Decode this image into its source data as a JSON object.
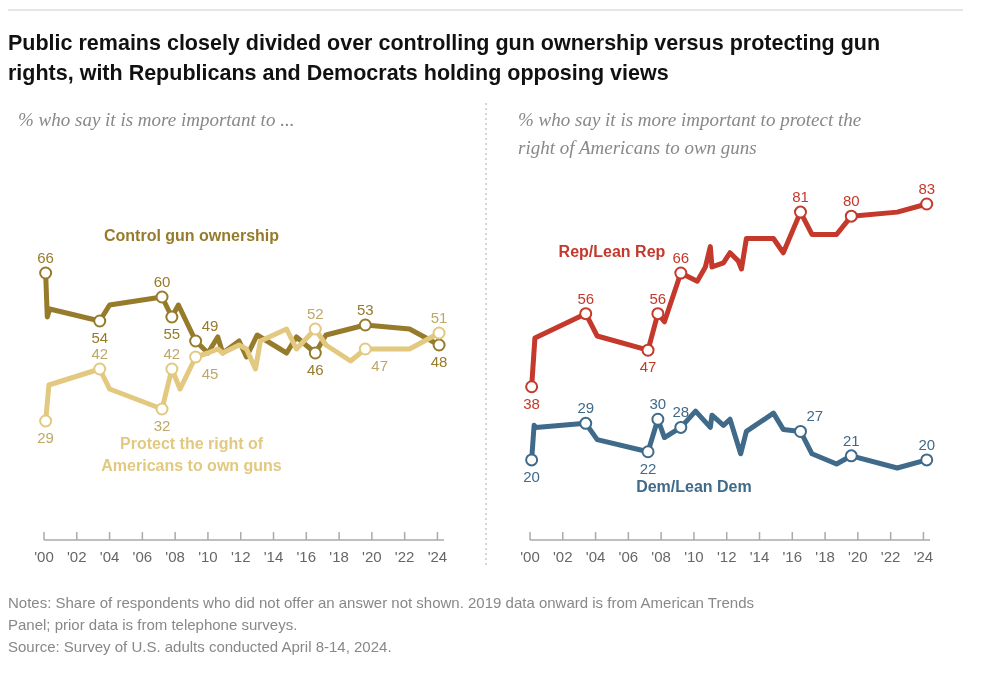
{
  "chart_data": [
    {
      "type": "line",
      "title": "Public remains closely divided over controlling gun ownership versus protecting gun rights, with Republicans and Democrats holding opposing views",
      "subtitle": "% who say it is more important to ...",
      "xlim": [
        2000,
        2024.4
      ],
      "xticks": [
        {
          "value": 2000,
          "label": "'00"
        },
        {
          "value": 2002,
          "label": "'02"
        },
        {
          "value": 2004,
          "label": "'04"
        },
        {
          "value": 2006,
          "label": "'06"
        },
        {
          "value": 2008,
          "label": "'08"
        },
        {
          "value": 2010,
          "label": "'10"
        },
        {
          "value": 2012,
          "label": "'12"
        },
        {
          "value": 2014,
          "label": "'14"
        },
        {
          "value": 2016,
          "label": "'16"
        },
        {
          "value": 2018,
          "label": "'18"
        },
        {
          "value": 2020,
          "label": "'20"
        },
        {
          "value": 2022,
          "label": "'22"
        },
        {
          "value": 2024,
          "label": "'24"
        }
      ],
      "tick_labels": "x",
      "grid": false,
      "legend": false,
      "line_style": "solid",
      "annotations": [
        "Notes: Share of respondents who did not offer an answer not shown. 2019 data onward is from American Trends Panel; prior data is from telephone surveys.",
        "Source: Survey of U.S. adults conducted April 8-14, 2024."
      ],
      "series": [
        {
          "name": "Control gun ownership",
          "color": "#967b2b",
          "x": [
            2000.1,
            2000.2,
            2000.35,
            2003.4,
            2004.0,
            2007.2,
            2007.8,
            2008.2,
            2009.25,
            2010.0,
            2010.6,
            2010.9,
            2011.9,
            2012.35,
            2013.0,
            2014.8,
            2015.4,
            2016.55,
            2017.2,
            2019.6,
            2022.3,
            2024.1
          ],
          "values": [
            66,
            55,
            57,
            54,
            58,
            60,
            55,
            58,
            49,
            46,
            50,
            46,
            49,
            45,
            50.5,
            46,
            50,
            46,
            50.5,
            53,
            52,
            48
          ],
          "value_labels": [
            "66",
            null,
            null,
            "54",
            null,
            "60",
            "55",
            null,
            "49",
            null,
            null,
            null,
            null,
            null,
            null,
            null,
            null,
            "46",
            null,
            "53",
            null,
            "48"
          ]
        },
        {
          "name": "Protect the right of Americans to own guns",
          "color": "#e2c97f",
          "x": [
            2000.1,
            2000.3,
            2003.4,
            2004.0,
            2007.2,
            2007.8,
            2008.3,
            2009.25,
            2010.0,
            2010.6,
            2010.9,
            2011.9,
            2012.35,
            2012.9,
            2013.2,
            2014.8,
            2015.4,
            2016.55,
            2017.2,
            2018.7,
            2019.6,
            2022.3,
            2024.1
          ],
          "values": [
            29,
            38,
            42,
            37,
            32,
            42,
            37,
            45,
            46,
            47,
            46,
            48,
            47,
            42,
            49,
            52,
            47,
            52,
            48,
            44,
            47,
            47,
            51
          ],
          "value_labels": [
            "29",
            null,
            "42",
            null,
            "32",
            "42",
            null,
            "45",
            null,
            null,
            null,
            null,
            null,
            null,
            null,
            null,
            null,
            "52",
            null,
            null,
            "47",
            null,
            "51"
          ]
        }
      ]
    },
    {
      "type": "line",
      "subtitle": "% who say it is more important to protect the right of Americans to own guns",
      "xlim": [
        2000,
        2024.4
      ],
      "xticks": [
        {
          "value": 2000,
          "label": "'00"
        },
        {
          "value": 2002,
          "label": "'02"
        },
        {
          "value": 2004,
          "label": "'04"
        },
        {
          "value": 2006,
          "label": "'06"
        },
        {
          "value": 2008,
          "label": "'08"
        },
        {
          "value": 2010,
          "label": "'10"
        },
        {
          "value": 2012,
          "label": "'12"
        },
        {
          "value": 2014,
          "label": "'14"
        },
        {
          "value": 2016,
          "label": "'16"
        },
        {
          "value": 2018,
          "label": "'18"
        },
        {
          "value": 2020,
          "label": "'20"
        },
        {
          "value": 2022,
          "label": "'22"
        },
        {
          "value": 2024,
          "label": "'24"
        }
      ],
      "tick_labels": "x",
      "grid": false,
      "legend": false,
      "line_style": "solid",
      "series": [
        {
          "name": "Rep/Lean Rep",
          "color": "#c4392b",
          "x": [
            2000.1,
            2000.3,
            2003.4,
            2004.1,
            2007.2,
            2007.8,
            2008.2,
            2009.2,
            2010.2,
            2010.7,
            2011.0,
            2011.1,
            2011.8,
            2012.2,
            2012.7,
            2012.9,
            2013.2,
            2014.85,
            2015.45,
            2016.5,
            2017.2,
            2018.7,
            2019.6,
            2022.4,
            2024.2
          ],
          "values": [
            38,
            50,
            56,
            50.5,
            47,
            56,
            54,
            66,
            64,
            67.5,
            72.5,
            67.5,
            68.5,
            71,
            69,
            67,
            74.5,
            74.5,
            71,
            81,
            75.5,
            75.5,
            80,
            81,
            83
          ],
          "value_labels": [
            "38",
            null,
            "56",
            null,
            "47",
            "56",
            null,
            "66",
            null,
            null,
            null,
            null,
            null,
            null,
            null,
            null,
            null,
            null,
            null,
            "81",
            null,
            null,
            "80",
            null,
            "83"
          ]
        },
        {
          "name": "Dem/Lean Dem",
          "color": "#3f6a8a",
          "x": [
            2000.1,
            2000.25,
            2000.35,
            2003.4,
            2004.1,
            2007.2,
            2007.8,
            2008.2,
            2009.2,
            2010.1,
            2011.0,
            2011.1,
            2011.8,
            2012.2,
            2012.85,
            2013.2,
            2014.85,
            2015.45,
            2016.5,
            2017.2,
            2018.7,
            2019.6,
            2022.4,
            2024.2
          ],
          "values": [
            20,
            28.5,
            28,
            29,
            25,
            22,
            30,
            25.5,
            28,
            32,
            28,
            31,
            28.5,
            30,
            21.5,
            27,
            31.5,
            27.5,
            27,
            21.5,
            19,
            21,
            18,
            20
          ],
          "value_labels": [
            "20",
            null,
            null,
            "29",
            null,
            "22",
            "30",
            null,
            "28",
            null,
            null,
            null,
            null,
            null,
            null,
            null,
            null,
            null,
            "27",
            null,
            null,
            "21",
            null,
            "20"
          ]
        }
      ]
    }
  ]
}
